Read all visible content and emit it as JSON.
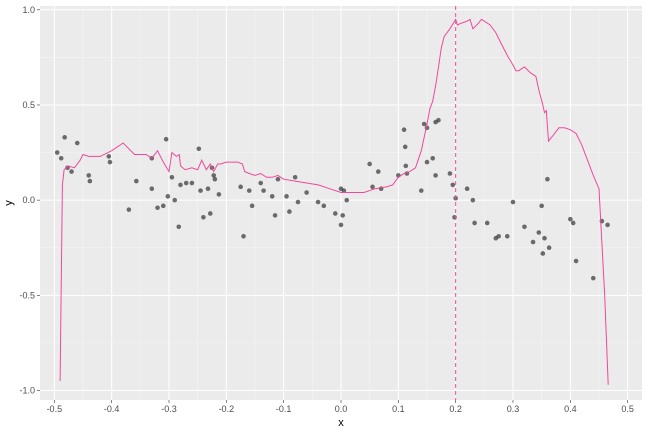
{
  "chart_data": {
    "type": "scatter",
    "title": "",
    "xlabel": "x",
    "ylabel": "y",
    "xlim": [
      -0.525,
      0.525
    ],
    "ylim": [
      -1.05,
      1.02
    ],
    "x_ticks": [
      -0.5,
      -0.4,
      -0.3,
      -0.2,
      -0.1,
      0.0,
      0.1,
      0.2,
      0.3,
      0.4,
      0.5
    ],
    "x_tick_labels": [
      "-0.5",
      "-0.4",
      "-0.3",
      "-0.2",
      "-0.1",
      "0.0",
      "0.1",
      "0.2",
      "0.3",
      "0.4",
      "0.5"
    ],
    "y_ticks": [
      -1.0,
      -0.5,
      0.0,
      0.5,
      1.0
    ],
    "y_tick_labels": [
      "-1.0",
      "-0.5",
      "0.0",
      "0.5",
      "1.0"
    ],
    "grid": true,
    "colors": {
      "panel": "#EBEBEB",
      "grid_major": "#FFFFFF",
      "points": "#333333",
      "line": "#F0489A",
      "vline": "#F0489A",
      "tick": "#333333"
    },
    "vline": {
      "x": 0.2,
      "style": "dashed"
    },
    "points": [
      {
        "x": -0.495,
        "y": 0.25
      },
      {
        "x": -0.488,
        "y": 0.22
      },
      {
        "x": -0.482,
        "y": 0.33
      },
      {
        "x": -0.477,
        "y": 0.17
      },
      {
        "x": -0.47,
        "y": 0.15
      },
      {
        "x": -0.46,
        "y": 0.3
      },
      {
        "x": -0.44,
        "y": 0.13
      },
      {
        "x": -0.438,
        "y": 0.1
      },
      {
        "x": -0.405,
        "y": 0.23
      },
      {
        "x": -0.403,
        "y": 0.2
      },
      {
        "x": -0.37,
        "y": -0.05
      },
      {
        "x": -0.357,
        "y": 0.1
      },
      {
        "x": -0.33,
        "y": 0.22
      },
      {
        "x": -0.33,
        "y": 0.06
      },
      {
        "x": -0.32,
        "y": -0.04
      },
      {
        "x": -0.31,
        "y": -0.03
      },
      {
        "x": -0.305,
        "y": 0.32
      },
      {
        "x": -0.302,
        "y": 0.02
      },
      {
        "x": -0.295,
        "y": 0.12
      },
      {
        "x": -0.29,
        "y": 0.0
      },
      {
        "x": -0.283,
        "y": -0.14
      },
      {
        "x": -0.28,
        "y": 0.08
      },
      {
        "x": -0.27,
        "y": 0.09
      },
      {
        "x": -0.26,
        "y": 0.09
      },
      {
        "x": -0.248,
        "y": 0.27
      },
      {
        "x": -0.245,
        "y": 0.05
      },
      {
        "x": -0.24,
        "y": -0.09
      },
      {
        "x": -0.232,
        "y": 0.06
      },
      {
        "x": -0.228,
        "y": -0.07
      },
      {
        "x": -0.225,
        "y": 0.17
      },
      {
        "x": -0.222,
        "y": 0.13
      },
      {
        "x": -0.22,
        "y": 0.11
      },
      {
        "x": -0.213,
        "y": 0.03
      },
      {
        "x": -0.175,
        "y": 0.07
      },
      {
        "x": -0.17,
        "y": -0.19
      },
      {
        "x": -0.16,
        "y": 0.05
      },
      {
        "x": -0.155,
        "y": -0.03
      },
      {
        "x": -0.14,
        "y": 0.09
      },
      {
        "x": -0.135,
        "y": 0.05
      },
      {
        "x": -0.12,
        "y": 0.02
      },
      {
        "x": -0.115,
        "y": -0.08
      },
      {
        "x": -0.11,
        "y": 0.11
      },
      {
        "x": -0.095,
        "y": 0.02
      },
      {
        "x": -0.09,
        "y": -0.06
      },
      {
        "x": -0.08,
        "y": 0.12
      },
      {
        "x": -0.075,
        "y": -0.01
      },
      {
        "x": -0.06,
        "y": 0.04
      },
      {
        "x": -0.04,
        "y": -0.01
      },
      {
        "x": -0.03,
        "y": -0.03
      },
      {
        "x": -0.01,
        "y": -0.07
      },
      {
        "x": 0.0,
        "y": -0.13
      },
      {
        "x": 0.0,
        "y": 0.06
      },
      {
        "x": 0.003,
        "y": -0.08
      },
      {
        "x": 0.005,
        "y": 0.05
      },
      {
        "x": 0.01,
        "y": 0.0
      },
      {
        "x": 0.05,
        "y": 0.19
      },
      {
        "x": 0.055,
        "y": 0.07
      },
      {
        "x": 0.065,
        "y": 0.15
      },
      {
        "x": 0.07,
        "y": 0.06
      },
      {
        "x": 0.1,
        "y": 0.13
      },
      {
        "x": 0.11,
        "y": 0.37
      },
      {
        "x": 0.112,
        "y": 0.28
      },
      {
        "x": 0.113,
        "y": 0.18
      },
      {
        "x": 0.115,
        "y": 0.14
      },
      {
        "x": 0.14,
        "y": 0.05
      },
      {
        "x": 0.145,
        "y": 0.4
      },
      {
        "x": 0.15,
        "y": 0.38
      },
      {
        "x": 0.15,
        "y": 0.2
      },
      {
        "x": 0.16,
        "y": 0.22
      },
      {
        "x": 0.165,
        "y": 0.41
      },
      {
        "x": 0.165,
        "y": 0.13
      },
      {
        "x": 0.17,
        "y": 0.42
      },
      {
        "x": 0.19,
        "y": 0.14
      },
      {
        "x": 0.195,
        "y": 0.08
      },
      {
        "x": 0.198,
        "y": -0.09
      },
      {
        "x": 0.2,
        "y": 0.01
      },
      {
        "x": 0.22,
        "y": 0.06
      },
      {
        "x": 0.23,
        "y": 0.0
      },
      {
        "x": 0.233,
        "y": -0.12
      },
      {
        "x": 0.255,
        "y": -0.12
      },
      {
        "x": 0.27,
        "y": -0.2
      },
      {
        "x": 0.275,
        "y": -0.19
      },
      {
        "x": 0.29,
        "y": -0.19
      },
      {
        "x": 0.3,
        "y": -0.01
      },
      {
        "x": 0.32,
        "y": -0.14
      },
      {
        "x": 0.335,
        "y": -0.22
      },
      {
        "x": 0.345,
        "y": -0.17
      },
      {
        "x": 0.35,
        "y": -0.03
      },
      {
        "x": 0.352,
        "y": -0.28
      },
      {
        "x": 0.355,
        "y": -0.2
      },
      {
        "x": 0.36,
        "y": 0.11
      },
      {
        "x": 0.363,
        "y": -0.25
      },
      {
        "x": 0.4,
        "y": -0.1
      },
      {
        "x": 0.405,
        "y": -0.12
      },
      {
        "x": 0.41,
        "y": -0.32
      },
      {
        "x": 0.44,
        "y": -0.41
      },
      {
        "x": 0.455,
        "y": -0.11
      },
      {
        "x": 0.465,
        "y": -0.13
      }
    ],
    "line": [
      {
        "x": -0.49,
        "y": -0.95
      },
      {
        "x": -0.486,
        "y": 0.08
      },
      {
        "x": -0.483,
        "y": 0.16
      },
      {
        "x": -0.476,
        "y": 0.18
      },
      {
        "x": -0.465,
        "y": 0.17
      },
      {
        "x": -0.455,
        "y": 0.21
      },
      {
        "x": -0.45,
        "y": 0.24
      },
      {
        "x": -0.44,
        "y": 0.23
      },
      {
        "x": -0.42,
        "y": 0.23
      },
      {
        "x": -0.4,
        "y": 0.26
      },
      {
        "x": -0.38,
        "y": 0.3
      },
      {
        "x": -0.36,
        "y": 0.24
      },
      {
        "x": -0.34,
        "y": 0.24
      },
      {
        "x": -0.33,
        "y": 0.22
      },
      {
        "x": -0.32,
        "y": 0.26
      },
      {
        "x": -0.31,
        "y": 0.2
      },
      {
        "x": -0.3,
        "y": 0.15
      },
      {
        "x": -0.295,
        "y": 0.25
      },
      {
        "x": -0.287,
        "y": 0.23
      },
      {
        "x": -0.282,
        "y": 0.24
      },
      {
        "x": -0.28,
        "y": 0.18
      },
      {
        "x": -0.272,
        "y": 0.16
      },
      {
        "x": -0.26,
        "y": 0.17
      },
      {
        "x": -0.25,
        "y": 0.16
      },
      {
        "x": -0.243,
        "y": 0.21
      },
      {
        "x": -0.238,
        "y": 0.18
      },
      {
        "x": -0.235,
        "y": 0.16
      },
      {
        "x": -0.228,
        "y": 0.19
      },
      {
        "x": -0.222,
        "y": 0.15
      },
      {
        "x": -0.215,
        "y": 0.19
      },
      {
        "x": -0.21,
        "y": 0.19
      },
      {
        "x": -0.2,
        "y": 0.2
      },
      {
        "x": -0.18,
        "y": 0.2
      },
      {
        "x": -0.172,
        "y": 0.19
      },
      {
        "x": -0.168,
        "y": 0.15
      },
      {
        "x": -0.16,
        "y": 0.14
      },
      {
        "x": -0.15,
        "y": 0.13
      },
      {
        "x": -0.14,
        "y": 0.14
      },
      {
        "x": -0.13,
        "y": 0.12
      },
      {
        "x": -0.12,
        "y": 0.12
      },
      {
        "x": -0.11,
        "y": 0.13
      },
      {
        "x": -0.1,
        "y": 0.11
      },
      {
        "x": -0.08,
        "y": 0.1
      },
      {
        "x": -0.06,
        "y": 0.09
      },
      {
        "x": -0.04,
        "y": 0.08
      },
      {
        "x": -0.02,
        "y": 0.06
      },
      {
        "x": 0.0,
        "y": 0.04
      },
      {
        "x": 0.02,
        "y": 0.04
      },
      {
        "x": 0.04,
        "y": 0.04
      },
      {
        "x": 0.06,
        "y": 0.06
      },
      {
        "x": 0.08,
        "y": 0.07
      },
      {
        "x": 0.09,
        "y": 0.08
      },
      {
        "x": 0.1,
        "y": 0.12
      },
      {
        "x": 0.11,
        "y": 0.14
      },
      {
        "x": 0.12,
        "y": 0.15
      },
      {
        "x": 0.13,
        "y": 0.17
      },
      {
        "x": 0.14,
        "y": 0.26
      },
      {
        "x": 0.15,
        "y": 0.4
      },
      {
        "x": 0.155,
        "y": 0.48
      },
      {
        "x": 0.16,
        "y": 0.52
      },
      {
        "x": 0.165,
        "y": 0.6
      },
      {
        "x": 0.17,
        "y": 0.7
      },
      {
        "x": 0.175,
        "y": 0.8
      },
      {
        "x": 0.18,
        "y": 0.86
      },
      {
        "x": 0.19,
        "y": 0.9
      },
      {
        "x": 0.2,
        "y": 0.95
      },
      {
        "x": 0.203,
        "y": 0.92
      },
      {
        "x": 0.21,
        "y": 0.93
      },
      {
        "x": 0.22,
        "y": 0.94
      },
      {
        "x": 0.225,
        "y": 0.95
      },
      {
        "x": 0.23,
        "y": 0.9
      },
      {
        "x": 0.24,
        "y": 0.93
      },
      {
        "x": 0.245,
        "y": 0.95
      },
      {
        "x": 0.26,
        "y": 0.92
      },
      {
        "x": 0.27,
        "y": 0.88
      },
      {
        "x": 0.28,
        "y": 0.82
      },
      {
        "x": 0.29,
        "y": 0.76
      },
      {
        "x": 0.3,
        "y": 0.71
      },
      {
        "x": 0.305,
        "y": 0.68
      },
      {
        "x": 0.31,
        "y": 0.68
      },
      {
        "x": 0.32,
        "y": 0.7
      },
      {
        "x": 0.33,
        "y": 0.67
      },
      {
        "x": 0.34,
        "y": 0.65
      },
      {
        "x": 0.345,
        "y": 0.58
      },
      {
        "x": 0.352,
        "y": 0.5
      },
      {
        "x": 0.355,
        "y": 0.46
      },
      {
        "x": 0.358,
        "y": 0.47
      },
      {
        "x": 0.362,
        "y": 0.31
      },
      {
        "x": 0.37,
        "y": 0.34
      },
      {
        "x": 0.38,
        "y": 0.38
      },
      {
        "x": 0.39,
        "y": 0.38
      },
      {
        "x": 0.4,
        "y": 0.37
      },
      {
        "x": 0.41,
        "y": 0.35
      },
      {
        "x": 0.42,
        "y": 0.29
      },
      {
        "x": 0.43,
        "y": 0.21
      },
      {
        "x": 0.44,
        "y": 0.13
      },
      {
        "x": 0.45,
        "y": 0.06
      },
      {
        "x": 0.46,
        "y": -0.5
      },
      {
        "x": 0.466,
        "y": -0.97
      }
    ]
  }
}
